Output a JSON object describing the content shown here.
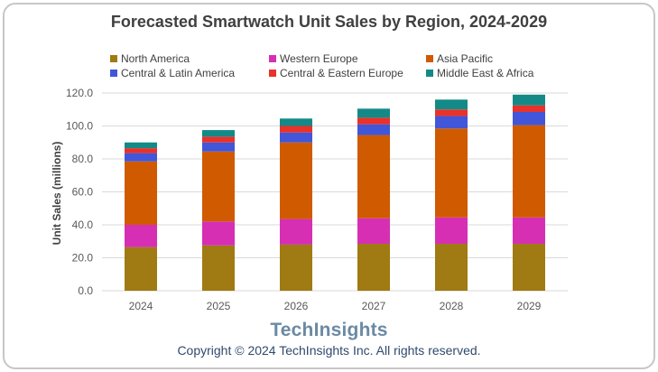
{
  "copyright": "Copyright © 2024 TechInsights Inc.  All rights reserved.",
  "brand": "TechInsights",
  "chart_data": {
    "type": "bar",
    "stacked": true,
    "title": "Forecasted Smartwatch Unit Sales by Region, 2024-2029",
    "xlabel": "",
    "ylabel": "Unit Sales (millions)",
    "ylim": [
      0,
      120
    ],
    "yticks": [
      "0.0",
      "20.0",
      "40.0",
      "60.0",
      "80.0",
      "100.0",
      "120.0"
    ],
    "grid": true,
    "legend_position": "top",
    "categories": [
      "2024",
      "2025",
      "2026",
      "2027",
      "2028",
      "2029"
    ],
    "series": [
      {
        "name": "North America",
        "color": "#a07a12",
        "values": [
          26.5,
          27.5,
          28.0,
          28.5,
          28.5,
          28.5
        ]
      },
      {
        "name": "Western Europe",
        "color": "#d62fb4",
        "values": [
          13.5,
          14.5,
          15.5,
          15.5,
          16.0,
          16.0
        ]
      },
      {
        "name": "Asia Pacific",
        "color": "#d05a00",
        "values": [
          38.5,
          42.5,
          46.5,
          50.5,
          54.0,
          56.0
        ]
      },
      {
        "name": "Central & Latin America",
        "color": "#4156d8",
        "values": [
          5.0,
          5.5,
          6.0,
          6.5,
          7.5,
          8.0
        ]
      },
      {
        "name": "Central & Eastern Europe",
        "color": "#e8322a",
        "values": [
          3.0,
          3.5,
          4.0,
          4.0,
          4.0,
          4.0
        ]
      },
      {
        "name": "Middle East & Africa",
        "color": "#138a87",
        "values": [
          3.5,
          4.0,
          4.5,
          5.5,
          6.0,
          6.5
        ]
      }
    ]
  }
}
